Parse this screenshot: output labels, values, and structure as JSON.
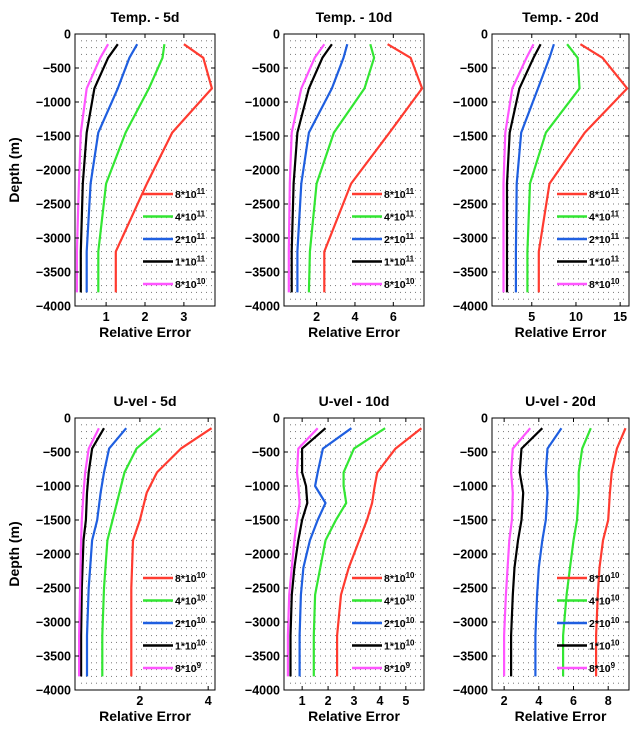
{
  "chart_data": [
    {
      "type": "line",
      "title": "Temp. - 5d",
      "xlabel": "Relative Error",
      "ylabel": "Depth (m)",
      "xlim": [
        0.2,
        3.8
      ],
      "ylim": [
        -4000,
        0
      ],
      "xticks": [
        1,
        2,
        3
      ],
      "yticks": [
        0,
        -500,
        -1000,
        -1500,
        -2000,
        -2500,
        -3000,
        -3500,
        -4000
      ],
      "grid": true,
      "legend_position": "lower-right",
      "depth": [
        -150,
        -350,
        -800,
        -1450,
        -2200,
        -3200,
        -3800
      ],
      "series": [
        {
          "name": "8*10^11",
          "color": "#ff3b30",
          "values": [
            3.0,
            3.5,
            3.72,
            2.7,
            2.05,
            1.25,
            1.25
          ]
        },
        {
          "name": "4*10^11",
          "color": "#33e633",
          "values": [
            2.5,
            2.45,
            2.1,
            1.5,
            1.0,
            0.8,
            0.8
          ]
        },
        {
          "name": "2*10^11",
          "color": "#1f5fe0",
          "values": [
            1.8,
            1.6,
            1.3,
            0.8,
            0.6,
            0.5,
            0.5
          ]
        },
        {
          "name": "1*10^11",
          "color": "#000000",
          "values": [
            1.3,
            1.05,
            0.7,
            0.5,
            0.4,
            0.35,
            0.35
          ]
        },
        {
          "name": "8*10^10",
          "color": "#ff55ff",
          "values": [
            1.05,
            0.85,
            0.5,
            0.35,
            0.3,
            0.25,
            0.25
          ]
        }
      ],
      "legend": [
        {
          "base": "8*10",
          "exp": "11"
        },
        {
          "base": "4*10",
          "exp": "11"
        },
        {
          "base": "2*10",
          "exp": "11"
        },
        {
          "base": "1*10",
          "exp": "11"
        },
        {
          "base": "8*10",
          "exp": "10"
        }
      ]
    },
    {
      "type": "line",
      "title": "Temp. - 10d",
      "xlabel": "Relative Error",
      "ylabel": "",
      "xlim": [
        0.3,
        7.6
      ],
      "ylim": [
        -4000,
        0
      ],
      "xticks": [
        2,
        4,
        6
      ],
      "yticks": [
        0,
        -500,
        -1000,
        -1500,
        -2000,
        -2500,
        -3000,
        -3500,
        -4000
      ],
      "grid": true,
      "legend_position": "lower-right",
      "depth": [
        -150,
        -350,
        -800,
        -1450,
        -2200,
        -3200,
        -3800
      ],
      "series": [
        {
          "name": "8*10^11",
          "color": "#ff3b30",
          "values": [
            5.7,
            6.9,
            7.5,
            5.8,
            3.8,
            2.4,
            2.4
          ]
        },
        {
          "name": "4*10^11",
          "color": "#33e633",
          "values": [
            4.8,
            5.0,
            4.5,
            2.9,
            2.0,
            1.65,
            1.6
          ]
        },
        {
          "name": "2*10^11",
          "color": "#1f5fe0",
          "values": [
            3.6,
            3.4,
            2.8,
            1.6,
            1.2,
            1.0,
            1.0
          ]
        },
        {
          "name": "1*10^11",
          "color": "#000000",
          "values": [
            2.8,
            2.3,
            1.6,
            1.0,
            0.8,
            0.7,
            0.7
          ]
        },
        {
          "name": "8*10^10",
          "color": "#ff55ff",
          "values": [
            2.4,
            1.9,
            1.2,
            0.7,
            0.6,
            0.55,
            0.55
          ]
        }
      ],
      "legend": [
        {
          "base": "8*10",
          "exp": "11"
        },
        {
          "base": "4*10",
          "exp": "11"
        },
        {
          "base": "2*10",
          "exp": "11"
        },
        {
          "base": "1*10",
          "exp": "11"
        },
        {
          "base": "8*10",
          "exp": "10"
        }
      ]
    },
    {
      "type": "line",
      "title": "Temp. - 20d",
      "xlabel": "Relative Error",
      "ylabel": "",
      "xlim": [
        0.5,
        16
      ],
      "ylim": [
        -4000,
        0
      ],
      "xticks": [
        5,
        10,
        15
      ],
      "yticks": [
        0,
        -500,
        -1000,
        -1500,
        -2000,
        -2500,
        -3000,
        -3500,
        -4000
      ],
      "grid": true,
      "legend_position": "lower-right",
      "depth": [
        -150,
        -350,
        -800,
        -1450,
        -2200,
        -3200,
        -3800
      ],
      "series": [
        {
          "name": "8*10^11",
          "color": "#ff3b30",
          "values": [
            10.5,
            13.0,
            15.8,
            11.0,
            7.0,
            5.8,
            5.8
          ]
        },
        {
          "name": "4*10^11",
          "color": "#33e633",
          "values": [
            9.0,
            10.2,
            10.4,
            6.6,
            4.8,
            4.5,
            4.5
          ]
        },
        {
          "name": "2*10^11",
          "color": "#1f5fe0",
          "values": [
            7.5,
            7.0,
            5.7,
            3.8,
            3.3,
            3.2,
            3.2
          ]
        },
        {
          "name": "1*10^11",
          "color": "#000000",
          "values": [
            6.0,
            5.2,
            3.6,
            2.5,
            2.2,
            2.2,
            2.2
          ]
        },
        {
          "name": "8*10^10",
          "color": "#ff55ff",
          "values": [
            5.2,
            4.4,
            2.8,
            2.0,
            1.8,
            1.8,
            1.8
          ]
        }
      ],
      "legend": [
        {
          "base": "8*10",
          "exp": "11"
        },
        {
          "base": "4*10",
          "exp": "11"
        },
        {
          "base": "2*10",
          "exp": "11"
        },
        {
          "base": "1*10",
          "exp": "11"
        },
        {
          "base": "8*10",
          "exp": "10"
        }
      ]
    },
    {
      "type": "line",
      "title": "U-vel - 5d",
      "xlabel": "Relative Error",
      "ylabel": "Depth (m)",
      "xlim": [
        0.1,
        4.2
      ],
      "ylim": [
        -4000,
        0
      ],
      "xticks": [
        2,
        4
      ],
      "yticks": [
        0,
        -500,
        -1000,
        -1500,
        -2000,
        -2500,
        -3000,
        -3500,
        -4000
      ],
      "grid": true,
      "legend_position": "lower-right",
      "depth": [
        -150,
        -450,
        -800,
        -1100,
        -1500,
        -1800,
        -2500,
        -3200,
        -3800
      ],
      "series": [
        {
          "name": "8*10^10",
          "color": "#ff3b30",
          "values": [
            4.1,
            3.2,
            2.5,
            2.2,
            2.0,
            1.8,
            1.75,
            1.75,
            1.75
          ]
        },
        {
          "name": "4*10^10",
          "color": "#33e633",
          "values": [
            2.6,
            1.9,
            1.55,
            1.4,
            1.2,
            1.05,
            0.95,
            0.9,
            0.9
          ]
        },
        {
          "name": "2*10^10",
          "color": "#1f5fe0",
          "values": [
            1.6,
            1.1,
            0.95,
            0.85,
            0.75,
            0.6,
            0.5,
            0.45,
            0.45
          ]
        },
        {
          "name": "1*10^10",
          "color": "#000000",
          "values": [
            0.95,
            0.6,
            0.5,
            0.45,
            0.42,
            0.35,
            0.3,
            0.28,
            0.28
          ]
        },
        {
          "name": "8*10^9",
          "color": "#ff55ff",
          "values": [
            0.8,
            0.5,
            0.4,
            0.35,
            0.3,
            0.28,
            0.25,
            0.22,
            0.22
          ]
        }
      ],
      "legend": [
        {
          "base": "8*10",
          "exp": "10"
        },
        {
          "base": "4*10",
          "exp": "10"
        },
        {
          "base": "2*10",
          "exp": "10"
        },
        {
          "base": "1*10",
          "exp": "10"
        },
        {
          "base": "8*10",
          "exp": "9"
        }
      ]
    },
    {
      "type": "line",
      "title": "U-vel - 10d",
      "xlabel": "Relative Error",
      "ylabel": "",
      "xlim": [
        0.3,
        5.7
      ],
      "ylim": [
        -4000,
        0
      ],
      "xticks": [
        1,
        2,
        3,
        4,
        5
      ],
      "yticks": [
        0,
        -500,
        -1000,
        -1500,
        -2000,
        -2500,
        -3000,
        -3500,
        -4000
      ],
      "grid": true,
      "legend_position": "lower-right",
      "depth": [
        -150,
        -450,
        -800,
        -1000,
        -1250,
        -1500,
        -1800,
        -2200,
        -2600,
        -3200,
        -3800
      ],
      "series": [
        {
          "name": "8*10^10",
          "color": "#ff3b30",
          "values": [
            5.6,
            4.6,
            3.9,
            3.8,
            3.7,
            3.5,
            3.2,
            2.8,
            2.5,
            2.35,
            2.35
          ]
        },
        {
          "name": "4*10^10",
          "color": "#33e633",
          "values": [
            4.2,
            3.0,
            2.6,
            2.6,
            2.7,
            2.3,
            1.9,
            1.7,
            1.5,
            1.45,
            1.45
          ]
        },
        {
          "name": "2*10^10",
          "color": "#1f5fe0",
          "values": [
            2.9,
            1.8,
            1.6,
            1.5,
            1.9,
            1.6,
            1.3,
            1.05,
            0.95,
            0.9,
            0.9
          ]
        },
        {
          "name": "1*10^10",
          "color": "#000000",
          "values": [
            1.9,
            1.0,
            1.0,
            1.15,
            1.2,
            1.0,
            0.85,
            0.7,
            0.6,
            0.55,
            0.55
          ]
        },
        {
          "name": "8*10^9",
          "color": "#ff55ff",
          "values": [
            1.6,
            0.85,
            0.8,
            0.85,
            0.9,
            0.8,
            0.7,
            0.6,
            0.5,
            0.45,
            0.45
          ]
        }
      ],
      "legend": [
        {
          "base": "8*10",
          "exp": "10"
        },
        {
          "base": "4*10",
          "exp": "10"
        },
        {
          "base": "2*10",
          "exp": "10"
        },
        {
          "base": "1*10",
          "exp": "10"
        },
        {
          "base": "8*10",
          "exp": "9"
        }
      ]
    },
    {
      "type": "line",
      "title": "U-vel - 20d",
      "xlabel": "Relative Error",
      "ylabel": "",
      "xlim": [
        1.3,
        9.2
      ],
      "ylim": [
        -4000,
        0
      ],
      "xticks": [
        2,
        4,
        6,
        8
      ],
      "yticks": [
        0,
        -500,
        -1000,
        -1500,
        -2000,
        -2500,
        -3000,
        -3500,
        -4000
      ],
      "grid": true,
      "legend_position": "lower-right",
      "depth": [
        -150,
        -450,
        -800,
        -1100,
        -1500,
        -1800,
        -2200,
        -2600,
        -3200,
        -3800
      ],
      "series": [
        {
          "name": "8*10^10",
          "color": "#ff3b30",
          "values": [
            9.0,
            8.5,
            8.2,
            8.1,
            8.0,
            7.7,
            7.5,
            7.4,
            7.3,
            7.3
          ]
        },
        {
          "name": "4*10^10",
          "color": "#33e633",
          "values": [
            7.0,
            6.5,
            6.3,
            6.3,
            6.2,
            6.0,
            5.8,
            5.6,
            5.4,
            5.4
          ]
        },
        {
          "name": "2*10^10",
          "color": "#1f5fe0",
          "values": [
            5.3,
            4.5,
            4.4,
            4.5,
            4.4,
            4.2,
            4.0,
            3.9,
            3.8,
            3.8
          ]
        },
        {
          "name": "1*10^10",
          "color": "#000000",
          "values": [
            4.2,
            3.0,
            2.9,
            3.1,
            3.0,
            2.8,
            2.6,
            2.5,
            2.4,
            2.4
          ]
        },
        {
          "name": "8*10^9",
          "color": "#ff55ff",
          "values": [
            3.5,
            2.5,
            2.4,
            2.5,
            2.45,
            2.3,
            2.2,
            2.1,
            2.0,
            2.0
          ]
        }
      ],
      "legend": [
        {
          "base": "8*10",
          "exp": "10"
        },
        {
          "base": "4*10",
          "exp": "10"
        },
        {
          "base": "2*10",
          "exp": "10"
        },
        {
          "base": "1*10",
          "exp": "10"
        },
        {
          "base": "8*10",
          "exp": "9"
        }
      ]
    }
  ]
}
